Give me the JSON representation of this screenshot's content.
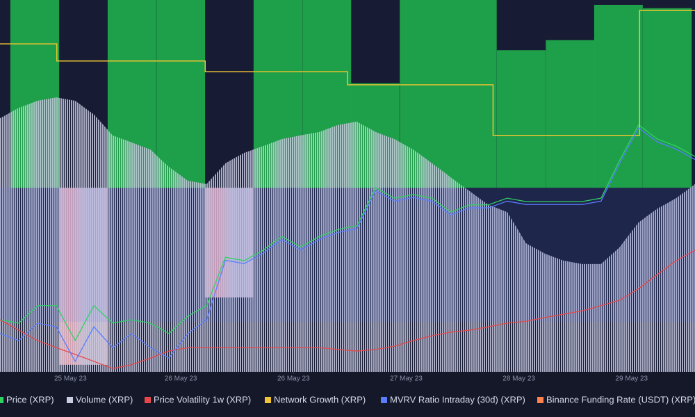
{
  "chart_data": {
    "type": "multi",
    "xlim": [
      0,
      148
    ],
    "ylim": [
      0,
      100
    ],
    "y2lim": [
      -49.5,
      50.5
    ],
    "xticks": [
      {
        "value": 15,
        "label": "25 May 23"
      },
      {
        "value": 38.5,
        "label": "26 May 23"
      },
      {
        "value": 62.5,
        "label": "26 May 23"
      },
      {
        "value": 86.5,
        "label": "27 May 23"
      },
      {
        "value": 110.5,
        "label": "28 May 23"
      },
      {
        "value": 134.5,
        "label": "29 May 23"
      }
    ],
    "x": [
      0,
      4,
      8,
      12,
      16,
      20,
      24,
      28,
      32,
      36,
      40,
      44,
      48,
      52,
      56,
      60,
      64,
      68,
      72,
      76,
      80,
      84,
      88,
      92,
      96,
      100,
      104,
      108,
      112,
      116,
      120,
      124,
      128,
      132,
      136,
      140,
      144,
      148
    ],
    "series": [
      {
        "name": "Price (XRP)",
        "kind": "line",
        "color": "#2fd163",
        "values": [
          14.0,
          13.1,
          17.8,
          17.8,
          8.4,
          17.8,
          13.1,
          14.0,
          13.1,
          10.3,
          15.0,
          17.8,
          30.8,
          29.9,
          32.7,
          36.4,
          33.6,
          36.4,
          38.3,
          39.3,
          49.5,
          46.7,
          47.7,
          46.7,
          43.0,
          44.9,
          44.9,
          46.7,
          45.8,
          45.8,
          45.8,
          45.8,
          46.7,
          57.0,
          66.4,
          62.6,
          60.7,
          57.9
        ]
      },
      {
        "name": "Volume (XRP)",
        "kind": "area",
        "color": "#c9cce2",
        "values": [
          68.2,
          71.0,
          72.9,
          73.8,
          72.9,
          69.2,
          63.6,
          61.7,
          59.8,
          55.1,
          51.4,
          50.5,
          56.1,
          58.9,
          60.7,
          62.6,
          63.6,
          64.5,
          66.4,
          67.3,
          64.5,
          62.6,
          59.8,
          56.1,
          52.3,
          48.6,
          44.9,
          43.0,
          34.6,
          31.8,
          29.9,
          29.0,
          29.0,
          33.6,
          40.2,
          43.9,
          46.7,
          50.5
        ]
      },
      {
        "name": "Price Volatility 1w (XRP)",
        "kind": "line",
        "color": "#e8474a",
        "values": [
          14.0,
          11.2,
          8.4,
          6.5,
          4.7,
          2.8,
          0.9,
          1.9,
          3.7,
          5.6,
          6.5,
          6.5,
          6.5,
          6.5,
          6.5,
          6.5,
          6.5,
          6.5,
          6.0,
          5.6,
          6.0,
          6.9,
          8.4,
          9.7,
          10.7,
          11.2,
          12.1,
          13.1,
          13.6,
          14.6,
          15.5,
          16.4,
          17.8,
          19.3,
          22.4,
          26.2,
          29.9,
          32.7
        ]
      },
      {
        "name": "Network Growth (XRP)",
        "kind": "step",
        "color": "#f0c531",
        "x": [
          0,
          12.1,
          43.7,
          74,
          105,
          136.2
        ],
        "values": [
          88.2,
          83.6,
          80.7,
          77.2,
          63.6,
          97.2
        ]
      },
      {
        "name": "MVRV Ratio Intraday (30d) (XRP)",
        "kind": "line",
        "color": "#5a7dff",
        "values": [
          10.3,
          8.4,
          13.1,
          12.1,
          2.8,
          12.1,
          6.5,
          10.3,
          6.5,
          3.7,
          10.3,
          14.0,
          30.0,
          29.1,
          31.9,
          35.6,
          32.8,
          35.6,
          37.5,
          38.5,
          48.7,
          45.9,
          46.9,
          45.9,
          42.2,
          44.1,
          44.1,
          45.9,
          45.0,
          45.0,
          45.0,
          45.0,
          45.9,
          56.2,
          65.6,
          61.8,
          59.9,
          57.1
        ]
      },
      {
        "name": "Binance Funding Rate (USDT) (XRP)",
        "kind": "bars",
        "axis": "y2",
        "color": "#ff8050",
        "positive_color": "#1fae4b",
        "negative_color": "#f2b6c4",
        "x": [
          7.4,
          17.8,
          28.1,
          38.5,
          48.8,
          59.2,
          69.6,
          79.9,
          90.3,
          100.6,
          111,
          121.4,
          131.7,
          142.1
        ],
        "values": [
          50.5,
          -47.6,
          50.5,
          50.5,
          -29.5,
          50.5,
          50.5,
          28.1,
          50.5,
          50.5,
          37,
          39.7,
          49.2,
          48.3
        ]
      }
    ]
  }
}
